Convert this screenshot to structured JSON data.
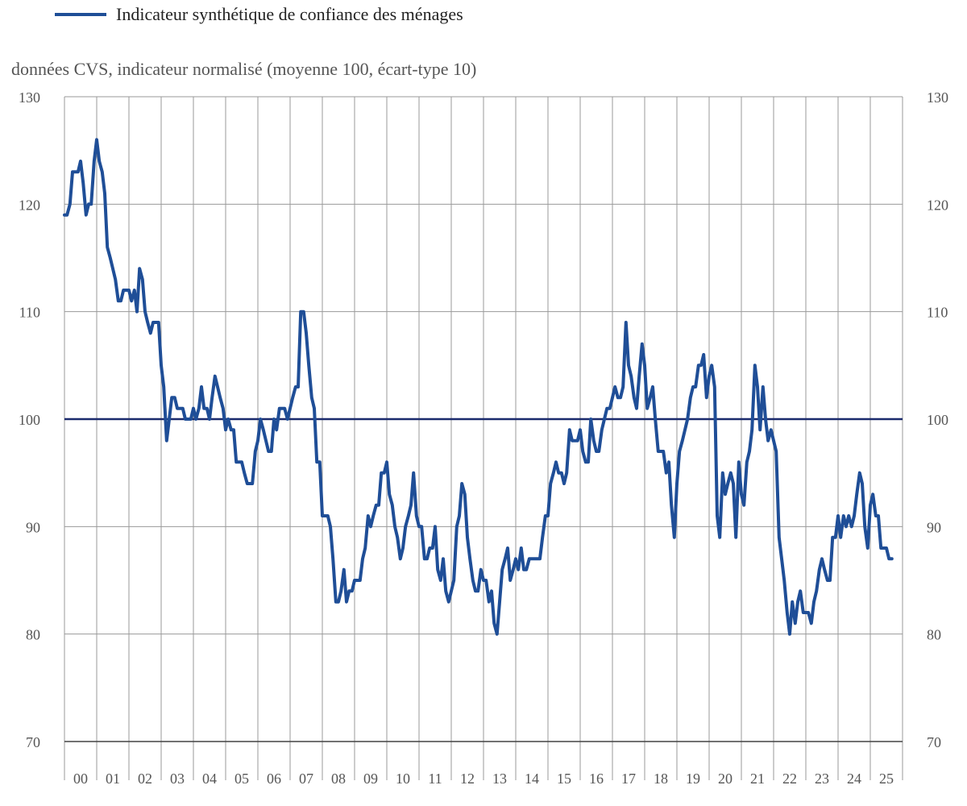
{
  "chart_data": {
    "type": "line",
    "title": "",
    "subtitle": "données CVS, indicateur normalisé (moyenne 100, écart-type 10)",
    "legend": [
      "Indicateur synthétique de confiance des ménages"
    ],
    "legend_position": "top-left",
    "ylim": [
      70,
      130
    ],
    "yticks": [
      70,
      80,
      90,
      100,
      110,
      120,
      130
    ],
    "year_labels": [
      "00",
      "01",
      "02",
      "03",
      "04",
      "05",
      "06",
      "07",
      "08",
      "09",
      "10",
      "11",
      "12",
      "13",
      "14",
      "15",
      "16",
      "17",
      "18",
      "19",
      "20",
      "21",
      "22",
      "23",
      "24",
      "25"
    ],
    "x_start_year": 1999.0,
    "x_end_year": 2025.0,
    "reference_line": 100,
    "series": [
      {
        "name": "Indicateur synthétique de confiance des ménages",
        "color": "#1f4e97",
        "points": [
          [
            1999.0,
            119
          ],
          [
            1999.08,
            119
          ],
          [
            1999.17,
            120
          ],
          [
            1999.25,
            123
          ],
          [
            1999.33,
            123
          ],
          [
            1999.42,
            123
          ],
          [
            1999.5,
            124
          ],
          [
            1999.58,
            122
          ],
          [
            1999.67,
            119
          ],
          [
            1999.75,
            120
          ],
          [
            1999.83,
            120
          ],
          [
            1999.92,
            124
          ],
          [
            2000.0,
            126
          ],
          [
            2000.08,
            124
          ],
          [
            2000.17,
            123
          ],
          [
            2000.25,
            121
          ],
          [
            2000.33,
            116
          ],
          [
            2000.42,
            115
          ],
          [
            2000.5,
            114
          ],
          [
            2000.58,
            113
          ],
          [
            2000.67,
            111
          ],
          [
            2000.75,
            111
          ],
          [
            2000.83,
            112
          ],
          [
            2000.92,
            112
          ],
          [
            2001.0,
            112
          ],
          [
            2001.08,
            111
          ],
          [
            2001.17,
            112
          ],
          [
            2001.25,
            110
          ],
          [
            2001.33,
            114
          ],
          [
            2001.42,
            113
          ],
          [
            2001.5,
            110
          ],
          [
            2001.58,
            109
          ],
          [
            2001.67,
            108
          ],
          [
            2001.75,
            109
          ],
          [
            2001.83,
            109
          ],
          [
            2001.92,
            109
          ],
          [
            2002.0,
            105
          ],
          [
            2002.08,
            103
          ],
          [
            2002.17,
            98
          ],
          [
            2002.25,
            100
          ],
          [
            2002.33,
            102
          ],
          [
            2002.42,
            102
          ],
          [
            2002.5,
            101
          ],
          [
            2002.58,
            101
          ],
          [
            2002.67,
            101
          ],
          [
            2002.75,
            100
          ],
          [
            2002.83,
            100
          ],
          [
            2002.92,
            100
          ],
          [
            2003.0,
            101
          ],
          [
            2003.08,
            100
          ],
          [
            2003.17,
            101
          ],
          [
            2003.25,
            103
          ],
          [
            2003.33,
            101
          ],
          [
            2003.42,
            101
          ],
          [
            2003.5,
            100
          ],
          [
            2003.58,
            102
          ],
          [
            2003.67,
            104
          ],
          [
            2003.75,
            103
          ],
          [
            2003.83,
            102
          ],
          [
            2003.92,
            101
          ],
          [
            2004.0,
            99
          ],
          [
            2004.08,
            100
          ],
          [
            2004.17,
            99
          ],
          [
            2004.25,
            99
          ],
          [
            2004.33,
            96
          ],
          [
            2004.42,
            96
          ],
          [
            2004.5,
            96
          ],
          [
            2004.58,
            95
          ],
          [
            2004.67,
            94
          ],
          [
            2004.75,
            94
          ],
          [
            2004.83,
            94
          ],
          [
            2004.92,
            97
          ],
          [
            2005.0,
            98
          ],
          [
            2005.08,
            100
          ],
          [
            2005.17,
            99
          ],
          [
            2005.25,
            98
          ],
          [
            2005.33,
            97
          ],
          [
            2005.42,
            97
          ],
          [
            2005.5,
            100
          ],
          [
            2005.58,
            99
          ],
          [
            2005.67,
            101
          ],
          [
            2005.75,
            101
          ],
          [
            2005.83,
            101
          ],
          [
            2005.92,
            100
          ],
          [
            2006.0,
            101
          ],
          [
            2006.08,
            102
          ],
          [
            2006.17,
            103
          ],
          [
            2006.25,
            103
          ],
          [
            2006.33,
            110
          ],
          [
            2006.42,
            110
          ],
          [
            2006.5,
            108
          ],
          [
            2006.58,
            105
          ],
          [
            2006.67,
            102
          ],
          [
            2006.75,
            101
          ],
          [
            2006.83,
            96
          ],
          [
            2006.92,
            96
          ],
          [
            2007.0,
            91
          ],
          [
            2007.08,
            91
          ],
          [
            2007.17,
            91
          ],
          [
            2007.25,
            90
          ],
          [
            2007.33,
            87
          ],
          [
            2007.42,
            83
          ],
          [
            2007.5,
            83
          ],
          [
            2007.58,
            84
          ],
          [
            2007.67,
            86
          ],
          [
            2007.75,
            83
          ],
          [
            2007.83,
            84
          ],
          [
            2007.92,
            84
          ],
          [
            2008.0,
            85
          ],
          [
            2008.08,
            85
          ],
          [
            2008.17,
            85
          ],
          [
            2008.25,
            87
          ],
          [
            2008.33,
            88
          ],
          [
            2008.42,
            91
          ],
          [
            2008.5,
            90
          ],
          [
            2008.58,
            91
          ],
          [
            2008.67,
            92
          ],
          [
            2008.75,
            92
          ],
          [
            2008.83,
            95
          ],
          [
            2008.92,
            95
          ],
          [
            2009.0,
            96
          ],
          [
            2009.08,
            93
          ],
          [
            2009.17,
            92
          ],
          [
            2009.25,
            90
          ],
          [
            2009.33,
            89
          ],
          [
            2009.42,
            87
          ],
          [
            2009.5,
            88
          ],
          [
            2009.58,
            90
          ],
          [
            2009.67,
            91
          ],
          [
            2009.75,
            92
          ],
          [
            2009.83,
            95
          ],
          [
            2009.92,
            91
          ],
          [
            2010.0,
            90
          ],
          [
            2010.08,
            90
          ],
          [
            2010.17,
            87
          ],
          [
            2010.25,
            87
          ],
          [
            2010.33,
            88
          ],
          [
            2010.42,
            88
          ],
          [
            2010.5,
            90
          ],
          [
            2010.58,
            86
          ],
          [
            2010.67,
            85
          ],
          [
            2010.75,
            87
          ],
          [
            2010.83,
            84
          ],
          [
            2010.92,
            83
          ],
          [
            2011.0,
            84
          ],
          [
            2011.08,
            85
          ],
          [
            2011.17,
            90
          ],
          [
            2011.25,
            91
          ],
          [
            2011.33,
            94
          ],
          [
            2011.42,
            93
          ],
          [
            2011.5,
            89
          ],
          [
            2011.58,
            87
          ],
          [
            2011.67,
            85
          ],
          [
            2011.75,
            84
          ],
          [
            2011.83,
            84
          ],
          [
            2011.92,
            86
          ],
          [
            2012.0,
            85
          ],
          [
            2012.08,
            85
          ],
          [
            2012.17,
            83
          ],
          [
            2012.25,
            84
          ],
          [
            2012.33,
            81
          ],
          [
            2012.42,
            80
          ],
          [
            2012.5,
            83
          ],
          [
            2012.58,
            86
          ],
          [
            2012.67,
            87
          ],
          [
            2012.75,
            88
          ],
          [
            2012.83,
            85
          ],
          [
            2012.92,
            86
          ],
          [
            2013.0,
            87
          ],
          [
            2013.08,
            86
          ],
          [
            2013.17,
            88
          ],
          [
            2013.25,
            86
          ],
          [
            2013.33,
            86
          ],
          [
            2013.42,
            87
          ],
          [
            2013.5,
            87
          ],
          [
            2013.58,
            87
          ],
          [
            2013.67,
            87
          ],
          [
            2013.75,
            87
          ],
          [
            2013.83,
            89
          ],
          [
            2013.92,
            91
          ],
          [
            2014.0,
            91
          ],
          [
            2014.08,
            94
          ],
          [
            2014.17,
            95
          ],
          [
            2014.25,
            96
          ],
          [
            2014.33,
            95
          ],
          [
            2014.42,
            95
          ],
          [
            2014.5,
            94
          ],
          [
            2014.58,
            95
          ],
          [
            2014.67,
            99
          ],
          [
            2014.75,
            98
          ],
          [
            2014.83,
            98
          ],
          [
            2014.92,
            98
          ],
          [
            2015.0,
            99
          ],
          [
            2015.08,
            97
          ],
          [
            2015.17,
            96
          ],
          [
            2015.25,
            96
          ],
          [
            2015.33,
            100
          ],
          [
            2015.42,
            98
          ],
          [
            2015.5,
            97
          ],
          [
            2015.58,
            97
          ],
          [
            2015.67,
            99
          ],
          [
            2015.75,
            100
          ],
          [
            2015.83,
            101
          ],
          [
            2015.92,
            101
          ],
          [
            2016.0,
            102
          ],
          [
            2016.08,
            103
          ],
          [
            2016.17,
            102
          ],
          [
            2016.25,
            102
          ],
          [
            2016.33,
            103
          ],
          [
            2016.42,
            109
          ],
          [
            2016.5,
            105
          ],
          [
            2016.58,
            104
          ],
          [
            2016.67,
            102
          ],
          [
            2016.75,
            101
          ],
          [
            2016.83,
            104
          ],
          [
            2016.92,
            107
          ],
          [
            2017.0,
            105
          ],
          [
            2017.08,
            101
          ],
          [
            2017.17,
            102
          ],
          [
            2017.25,
            103
          ],
          [
            2017.33,
            100
          ],
          [
            2017.42,
            97
          ],
          [
            2017.5,
            97
          ],
          [
            2017.58,
            97
          ],
          [
            2017.67,
            95
          ],
          [
            2017.75,
            96
          ],
          [
            2017.83,
            92
          ],
          [
            2017.92,
            89
          ],
          [
            2018.0,
            94
          ],
          [
            2018.08,
            97
          ],
          [
            2018.17,
            98
          ],
          [
            2018.25,
            99
          ],
          [
            2018.33,
            100
          ],
          [
            2018.42,
            102
          ],
          [
            2018.5,
            103
          ],
          [
            2018.58,
            103
          ],
          [
            2018.67,
            105
          ],
          [
            2018.75,
            105
          ],
          [
            2018.83,
            106
          ],
          [
            2018.92,
            102
          ],
          [
            2019.0,
            104
          ],
          [
            2019.08,
            105
          ],
          [
            2019.17,
            103
          ],
          [
            2019.25,
            91
          ],
          [
            2019.33,
            89
          ],
          [
            2019.42,
            95
          ],
          [
            2019.5,
            93
          ],
          [
            2019.58,
            94
          ],
          [
            2019.67,
            95
          ],
          [
            2019.75,
            94
          ],
          [
            2019.83,
            89
          ],
          [
            2019.92,
            96
          ],
          [
            2020.0,
            93
          ],
          [
            2020.08,
            92
          ],
          [
            2020.17,
            96
          ],
          [
            2020.25,
            97
          ],
          [
            2020.33,
            99
          ],
          [
            2020.42,
            105
          ],
          [
            2020.5,
            103
          ],
          [
            2020.58,
            99
          ],
          [
            2020.67,
            103
          ],
          [
            2020.75,
            100
          ],
          [
            2020.83,
            98
          ],
          [
            2020.92,
            99
          ],
          [
            2021.0,
            98
          ],
          [
            2021.08,
            97
          ],
          [
            2021.17,
            89
          ],
          [
            2021.25,
            87
          ],
          [
            2021.33,
            85
          ],
          [
            2021.42,
            82
          ],
          [
            2021.5,
            80
          ],
          [
            2021.58,
            83
          ],
          [
            2021.67,
            81
          ],
          [
            2021.75,
            83
          ],
          [
            2021.83,
            84
          ],
          [
            2021.92,
            82
          ],
          [
            2022.0,
            82
          ],
          [
            2022.08,
            82
          ],
          [
            2022.17,
            81
          ],
          [
            2022.25,
            83
          ],
          [
            2022.33,
            84
          ],
          [
            2022.42,
            86
          ],
          [
            2022.5,
            87
          ],
          [
            2022.58,
            86
          ],
          [
            2022.67,
            85
          ],
          [
            2022.75,
            85
          ],
          [
            2022.83,
            89
          ],
          [
            2022.92,
            89
          ],
          [
            2023.0,
            91
          ],
          [
            2023.08,
            89
          ],
          [
            2023.17,
            91
          ],
          [
            2023.25,
            90
          ],
          [
            2023.33,
            91
          ],
          [
            2023.42,
            90
          ],
          [
            2023.5,
            91
          ],
          [
            2023.58,
            93
          ],
          [
            2023.67,
            95
          ],
          [
            2023.75,
            94
          ],
          [
            2023.83,
            90
          ],
          [
            2023.92,
            88
          ],
          [
            2024.0,
            92
          ],
          [
            2024.08,
            93
          ],
          [
            2024.17,
            91
          ],
          [
            2024.25,
            91
          ],
          [
            2024.33,
            88
          ],
          [
            2024.42,
            88
          ],
          [
            2024.5,
            88
          ],
          [
            2024.58,
            87
          ],
          [
            2024.67,
            87
          ]
        ]
      }
    ]
  }
}
